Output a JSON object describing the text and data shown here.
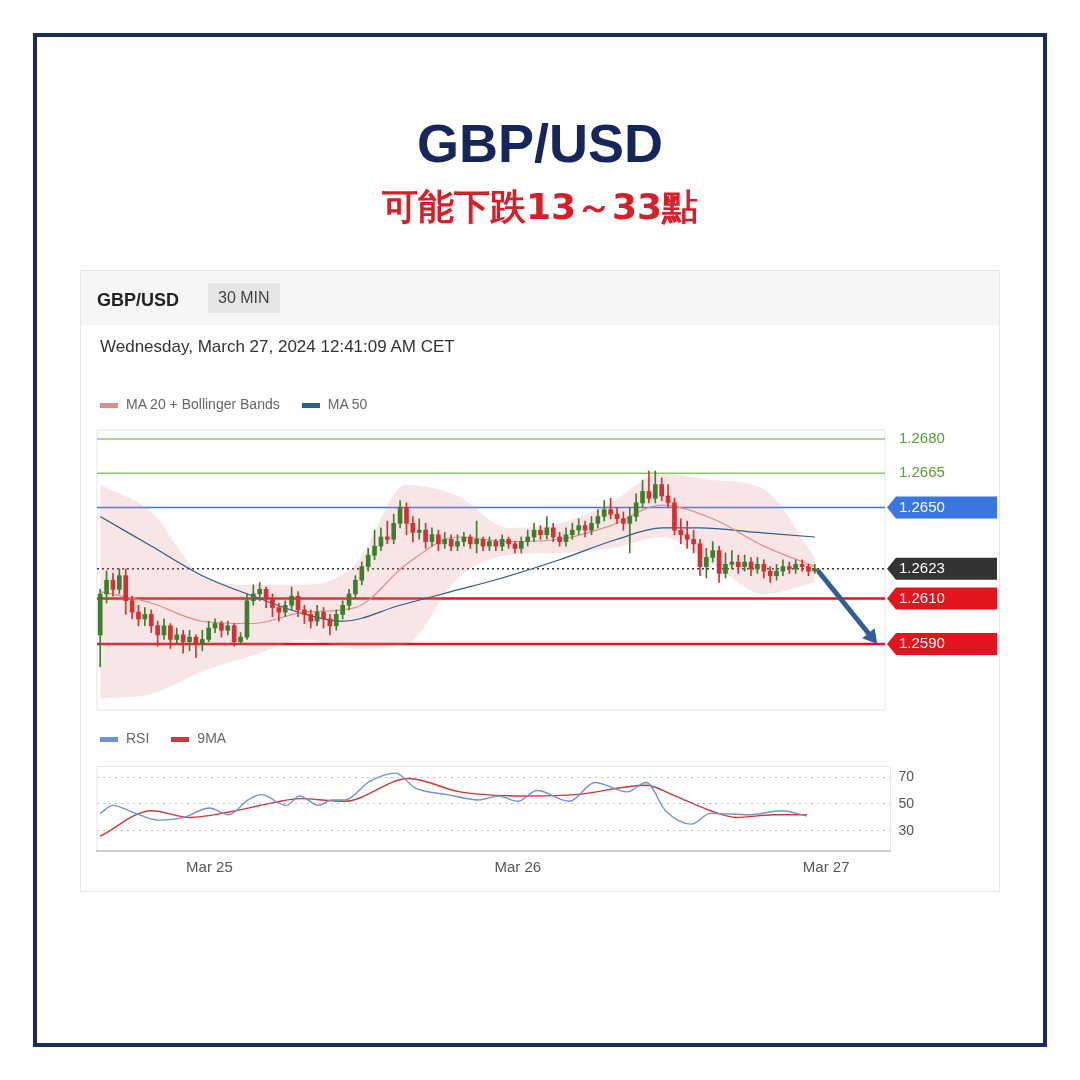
{
  "chart_data": [
    {
      "type": "candlestick",
      "title": "GBP/USD",
      "subtitle": "可能下跌13～33點",
      "annotations": [
        "GBP/USD",
        "30 MIN",
        "Wednesday, March 27, 2024 12:41:09 AM CET"
      ],
      "xlim": [
        "2024-03-24T15:15",
        "2024-03-27T05:00"
      ],
      "ylim": [
        1.2561,
        1.2684
      ],
      "tick_labels": false,
      "legend": "top left",
      "series": [
        {
          "x": [
            "2024-03-24T15:30",
            "2024-03-24T16:00",
            "2024-03-24T16:30",
            "2024-03-24T17:00",
            "2024-03-24T17:30",
            "2024-03-24T18:00",
            "2024-03-24T18:30",
            "2024-03-24T19:00",
            "2024-03-24T19:30",
            "2024-03-24T20:00",
            "2024-03-24T20:30",
            "2024-03-24T21:00",
            "2024-03-24T21:30",
            "2024-03-24T22:00",
            "2024-03-24T22:30",
            "2024-03-24T23:00",
            "2024-03-24T23:30",
            "2024-03-25T00:00",
            "2024-03-25T00:30",
            "2024-03-25T01:00",
            "2024-03-25T01:30",
            "2024-03-25T02:00",
            "2024-03-25T02:30",
            "2024-03-25T03:00",
            "2024-03-25T03:30",
            "2024-03-25T04:00",
            "2024-03-25T04:30",
            "2024-03-25T05:00",
            "2024-03-25T05:30",
            "2024-03-25T06:00",
            "2024-03-25T06:30",
            "2024-03-25T07:00",
            "2024-03-25T07:30",
            "2024-03-25T08:00",
            "2024-03-25T08:30",
            "2024-03-25T09:00",
            "2024-03-25T09:30",
            "2024-03-25T10:00",
            "2024-03-25T10:30",
            "2024-03-25T11:00",
            "2024-03-25T11:30",
            "2024-03-25T12:00",
            "2024-03-25T12:30",
            "2024-03-25T13:00",
            "2024-03-25T13:30",
            "2024-03-25T14:00",
            "2024-03-25T14:30",
            "2024-03-25T15:00",
            "2024-03-25T15:30",
            "2024-03-25T16:00",
            "2024-03-25T16:30",
            "2024-03-25T17:00",
            "2024-03-25T17:30",
            "2024-03-25T18:00",
            "2024-03-25T18:30",
            "2024-03-25T19:00",
            "2024-03-25T19:30",
            "2024-03-25T20:00",
            "2024-03-25T20:30",
            "2024-03-25T21:00",
            "2024-03-25T21:30",
            "2024-03-25T22:00",
            "2024-03-25T22:30",
            "2024-03-25T23:00",
            "2024-03-25T23:30",
            "2024-03-26T00:00",
            "2024-03-26T00:30",
            "2024-03-26T01:00",
            "2024-03-26T01:30",
            "2024-03-26T02:00",
            "2024-03-26T02:30",
            "2024-03-26T03:00",
            "2024-03-26T03:30",
            "2024-03-26T04:00",
            "2024-03-26T04:30",
            "2024-03-26T05:00",
            "2024-03-26T05:30",
            "2024-03-26T06:00",
            "2024-03-26T06:30",
            "2024-03-26T07:00",
            "2024-03-26T07:30",
            "2024-03-26T08:00",
            "2024-03-26T08:30",
            "2024-03-26T09:00",
            "2024-03-26T09:30",
            "2024-03-26T10:00",
            "2024-03-26T10:30",
            "2024-03-26T11:00",
            "2024-03-26T11:30",
            "2024-03-26T12:00",
            "2024-03-26T12:30",
            "2024-03-26T13:00",
            "2024-03-26T13:30",
            "2024-03-26T14:00",
            "2024-03-26T14:30",
            "2024-03-26T15:00",
            "2024-03-26T15:30",
            "2024-03-26T16:00",
            "2024-03-26T16:30",
            "2024-03-26T17:00",
            "2024-03-26T17:30",
            "2024-03-26T18:00",
            "2024-03-26T18:30",
            "2024-03-26T19:00",
            "2024-03-26T19:30",
            "2024-03-26T20:00",
            "2024-03-26T20:30",
            "2024-03-26T21:00",
            "2024-03-26T21:30",
            "2024-03-26T22:00",
            "2024-03-26T22:30",
            "2024-03-26T23:00",
            "2024-03-26T23:30"
          ],
          "ohlc": [
            [
              1.2594,
              1.2614,
              1.258,
              1.2612
            ],
            [
              1.2612,
              1.2622,
              1.2608,
              1.2618
            ],
            [
              1.2618,
              1.2621,
              1.2611,
              1.2614
            ],
            [
              1.2614,
              1.2623,
              1.2612,
              1.262
            ],
            [
              1.262,
              1.2623,
              1.2603,
              1.2609
            ],
            [
              1.2609,
              1.2611,
              1.2601,
              1.2604
            ],
            [
              1.2604,
              1.2607,
              1.2598,
              1.2601
            ],
            [
              1.2601,
              1.2606,
              1.2598,
              1.2603
            ],
            [
              1.2603,
              1.2605,
              1.2595,
              1.2598
            ],
            [
              1.2598,
              1.26,
              1.2589,
              1.2594
            ],
            [
              1.2594,
              1.2601,
              1.2592,
              1.2598
            ],
            [
              1.2598,
              1.2599,
              1.2588,
              1.2592
            ],
            [
              1.2592,
              1.2597,
              1.259,
              1.2594
            ],
            [
              1.2594,
              1.2596,
              1.2586,
              1.2591
            ],
            [
              1.2591,
              1.2596,
              1.2587,
              1.2593
            ],
            [
              1.2593,
              1.2594,
              1.2584,
              1.259
            ],
            [
              1.259,
              1.2596,
              1.2587,
              1.2592
            ],
            [
              1.2592,
              1.26,
              1.2591,
              1.2597
            ],
            [
              1.2597,
              1.2601,
              1.2595,
              1.2599
            ],
            [
              1.2599,
              1.26,
              1.2593,
              1.2596
            ],
            [
              1.2596,
              1.26,
              1.2594,
              1.2598
            ],
            [
              1.2598,
              1.2599,
              1.2589,
              1.2591
            ],
            [
              1.2591,
              1.2595,
              1.259,
              1.2593
            ],
            [
              1.2593,
              1.2612,
              1.2592,
              1.2609
            ],
            [
              1.2609,
              1.2616,
              1.2607,
              1.2612
            ],
            [
              1.2612,
              1.2617,
              1.2609,
              1.2614
            ],
            [
              1.2614,
              1.2615,
              1.2606,
              1.261
            ],
            [
              1.261,
              1.2612,
              1.2602,
              1.2606
            ],
            [
              1.2606,
              1.2608,
              1.26,
              1.2604
            ],
            [
              1.2604,
              1.2609,
              1.2602,
              1.2607
            ],
            [
              1.2607,
              1.2615,
              1.2605,
              1.2611
            ],
            [
              1.2611,
              1.2613,
              1.2602,
              1.2605
            ],
            [
              1.2605,
              1.2607,
              1.2599,
              1.2603
            ],
            [
              1.2603,
              1.2605,
              1.2597,
              1.26
            ],
            [
              1.26,
              1.2607,
              1.2598,
              1.2604
            ],
            [
              1.2604,
              1.2606,
              1.2597,
              1.2601
            ],
            [
              1.2601,
              1.2603,
              1.2594,
              1.2598
            ],
            [
              1.2598,
              1.2605,
              1.2596,
              1.2603
            ],
            [
              1.2603,
              1.2609,
              1.2601,
              1.2607
            ],
            [
              1.2607,
              1.2614,
              1.2605,
              1.2612
            ],
            [
              1.2612,
              1.262,
              1.261,
              1.2618
            ],
            [
              1.2618,
              1.2626,
              1.2616,
              1.2624
            ],
            [
              1.2624,
              1.2632,
              1.2622,
              1.2629
            ],
            [
              1.2629,
              1.264,
              1.2627,
              1.2633
            ],
            [
              1.2633,
              1.2641,
              1.2631,
              1.2637
            ],
            [
              1.2637,
              1.2644,
              1.2634,
              1.2636
            ],
            [
              1.2636,
              1.2647,
              1.2634,
              1.2643
            ],
            [
              1.2643,
              1.2653,
              1.2641,
              1.265
            ],
            [
              1.265,
              1.2652,
              1.2638,
              1.2643
            ],
            [
              1.2643,
              1.2646,
              1.2635,
              1.2639
            ],
            [
              1.2639,
              1.2645,
              1.2636,
              1.264
            ],
            [
              1.264,
              1.2643,
              1.2632,
              1.2635
            ],
            [
              1.2635,
              1.2641,
              1.2633,
              1.2638
            ],
            [
              1.2638,
              1.264,
              1.2631,
              1.2634
            ],
            [
              1.2634,
              1.2639,
              1.2632,
              1.2636
            ],
            [
              1.2636,
              1.2638,
              1.2631,
              1.2633
            ],
            [
              1.2633,
              1.2638,
              1.2631,
              1.2635
            ],
            [
              1.2635,
              1.2639,
              1.2633,
              1.2637
            ],
            [
              1.2637,
              1.2638,
              1.2632,
              1.2634
            ],
            [
              1.2634,
              1.2644,
              1.263,
              1.2636
            ],
            [
              1.2636,
              1.2637,
              1.2631,
              1.2633
            ],
            [
              1.2633,
              1.2637,
              1.2631,
              1.2635
            ],
            [
              1.2635,
              1.2636,
              1.2631,
              1.2633
            ],
            [
              1.2633,
              1.2638,
              1.2631,
              1.2636
            ],
            [
              1.2636,
              1.2637,
              1.2632,
              1.2634
            ],
            [
              1.2634,
              1.2635,
              1.263,
              1.2632
            ],
            [
              1.2632,
              1.2637,
              1.263,
              1.2635
            ],
            [
              1.2635,
              1.264,
              1.2633,
              1.2637
            ],
            [
              1.2637,
              1.2643,
              1.2635,
              1.264
            ],
            [
              1.264,
              1.2642,
              1.2636,
              1.2638
            ],
            [
              1.2638,
              1.2646,
              1.2636,
              1.2641
            ],
            [
              1.2641,
              1.2643,
              1.2635,
              1.2637
            ],
            [
              1.2637,
              1.2639,
              1.2633,
              1.2635
            ],
            [
              1.2635,
              1.2641,
              1.2633,
              1.2638
            ],
            [
              1.2638,
              1.2643,
              1.2636,
              1.264
            ],
            [
              1.264,
              1.2645,
              1.2638,
              1.2642
            ],
            [
              1.2642,
              1.2644,
              1.2637,
              1.264
            ],
            [
              1.264,
              1.2646,
              1.2638,
              1.2643
            ],
            [
              1.2643,
              1.2649,
              1.2641,
              1.2646
            ],
            [
              1.2646,
              1.2653,
              1.2644,
              1.2649
            ],
            [
              1.2649,
              1.2654,
              1.2645,
              1.2647
            ],
            [
              1.2647,
              1.265,
              1.2643,
              1.2645
            ],
            [
              1.2645,
              1.2648,
              1.264,
              1.2643
            ],
            [
              1.2643,
              1.265,
              1.263,
              1.2646
            ],
            [
              1.2646,
              1.2656,
              1.2644,
              1.2652
            ],
            [
              1.2652,
              1.2662,
              1.265,
              1.2657
            ],
            [
              1.2657,
              1.2666,
              1.2652,
              1.2654
            ],
            [
              1.2654,
              1.2666,
              1.2652,
              1.266
            ],
            [
              1.266,
              1.2663,
              1.2653,
              1.2655
            ],
            [
              1.2655,
              1.266,
              1.265,
              1.2652
            ],
            [
              1.2652,
              1.2654,
              1.2638,
              1.264
            ],
            [
              1.264,
              1.2645,
              1.2634,
              1.2638
            ],
            [
              1.2638,
              1.2644,
              1.2632,
              1.2636
            ],
            [
              1.2636,
              1.264,
              1.263,
              1.2634
            ],
            [
              1.2634,
              1.2636,
              1.262,
              1.2624
            ],
            [
              1.2624,
              1.2632,
              1.2619,
              1.2628
            ],
            [
              1.2628,
              1.2635,
              1.2626,
              1.2631
            ],
            [
              1.2631,
              1.2633,
              1.2617,
              1.2621
            ],
            [
              1.2621,
              1.263,
              1.2619,
              1.2625
            ],
            [
              1.2625,
              1.2631,
              1.2623,
              1.2626
            ],
            [
              1.2626,
              1.2629,
              1.2621,
              1.2624
            ],
            [
              1.2624,
              1.2629,
              1.2622,
              1.2626
            ],
            [
              1.2626,
              1.2628,
              1.262,
              1.2623
            ],
            [
              1.2623,
              1.2628,
              1.2621,
              1.2625
            ],
            [
              1.2625,
              1.2627,
              1.2619,
              1.2622
            ],
            [
              1.2622,
              1.2624,
              1.2617,
              1.262
            ],
            [
              1.262,
              1.2625,
              1.2618,
              1.2622
            ],
            [
              1.2622,
              1.2627,
              1.262,
              1.2624
            ],
            [
              1.2624,
              1.2626,
              1.2621,
              1.2623
            ],
            [
              1.2623,
              1.2627,
              1.2621,
              1.2625
            ],
            [
              1.2625,
              1.2627,
              1.2622,
              1.2624
            ],
            [
              1.2624,
              1.2625,
              1.262,
              1.2622
            ],
            [
              1.2622,
              1.2625,
              1.2621,
              1.2623
            ]
          ]
        },
        {
          "type": "line",
          "name": "MA 20 + Bollinger Bands",
          "color": "#e08c8c",
          "x": [
            "2024-03-24T15:30",
            "2024-03-24T19:30",
            "2024-03-24T23:30",
            "2024-03-25T03:30",
            "2024-03-25T07:30",
            "2024-03-25T11:30",
            "2024-03-25T15:30",
            "2024-03-25T19:30",
            "2024-03-25T23:30",
            "2024-03-26T03:30",
            "2024-03-26T07:30",
            "2024-03-26T11:30",
            "2024-03-26T15:30",
            "2024-03-26T19:30",
            "2024-03-26T23:30"
          ],
          "values": [
            1.2613,
            1.2608,
            1.26,
            1.2599,
            1.2604,
            1.2606,
            1.2625,
            1.2637,
            1.2635,
            1.2636,
            1.2642,
            1.2651,
            1.2645,
            1.2633,
            1.2624
          ],
          "lower": [
            1.2566,
            1.2568,
            1.2578,
            1.2585,
            1.2592,
            1.2588,
            1.259,
            1.2619,
            1.2629,
            1.263,
            1.2632,
            1.2637,
            1.2625,
            1.2612,
            1.2617
          ],
          "upper": [
            1.266,
            1.2648,
            1.262,
            1.2616,
            1.2616,
            1.2625,
            1.266,
            1.2655,
            1.2641,
            1.2643,
            1.2652,
            1.2665,
            1.2662,
            1.2658,
            1.2628
          ]
        },
        {
          "type": "line",
          "name": "MA 50",
          "color": "#2d5b8a",
          "x": [
            "2024-03-24T15:30",
            "2024-03-24T19:30",
            "2024-03-24T23:30",
            "2024-03-25T03:30",
            "2024-03-25T07:00",
            "2024-03-25T10:30",
            "2024-03-25T15:00",
            "2024-03-25T19:00",
            "2024-03-25T23:00",
            "2024-03-26T03:30",
            "2024-03-26T08:00",
            "2024-03-26T11:30",
            "2024-03-26T14:30",
            "2024-03-26T19:00",
            "2024-03-26T23:30"
          ],
          "values": [
            1.2646,
            1.2633,
            1.262,
            1.2611,
            1.2604,
            1.26,
            1.2607,
            1.2613,
            1.2619,
            1.2627,
            1.2636,
            1.2641,
            1.2641,
            1.2639,
            1.2637
          ]
        }
      ],
      "ref_lines": [
        {
          "axis": "y",
          "value": 1.268,
          "label": "1.2680",
          "color": "#8cc96a"
        },
        {
          "axis": "y",
          "value": 1.2665,
          "label": "1.2665",
          "color": "#8cc96a"
        },
        {
          "axis": "y",
          "value": 1.265,
          "label": "1.2650",
          "color": "#3a76e0"
        },
        {
          "axis": "y",
          "value": 1.2623,
          "label": "1.2623",
          "color": "#333333",
          "line_style": "dotted"
        },
        {
          "axis": "y",
          "value": 1.261,
          "label": "1.2610",
          "color": "#e3141e"
        },
        {
          "axis": "y",
          "value": 1.259,
          "label": "1.2590",
          "color": "#e3141e"
        }
      ]
    },
    {
      "type": "line",
      "xlim": [
        "2024-03-24T15:15",
        "2024-03-27T05:00"
      ],
      "xticks": [
        {
          "value": "2024-03-25",
          "label": "Mar 25"
        },
        {
          "value": "2024-03-26",
          "label": "Mar 26"
        },
        {
          "value": "2024-03-27",
          "label": "Mar 27"
        }
      ],
      "ylim": [
        15,
        78
      ],
      "yticks": [
        30,
        50,
        70
      ],
      "grid": "y",
      "legend": "top left",
      "series": [
        {
          "name": "RSI",
          "color": "#6f94d6",
          "x": [
            "2024-03-24T15:30",
            "2024-03-24T16:30",
            "2024-03-24T18:00",
            "2024-03-24T20:00",
            "2024-03-24T22:00",
            "2024-03-25T00:00",
            "2024-03-25T01:30",
            "2024-03-25T03:00",
            "2024-03-25T04:00",
            "2024-03-25T06:00",
            "2024-03-25T07:00",
            "2024-03-25T08:30",
            "2024-03-25T09:30",
            "2024-03-25T10:30",
            "2024-03-25T12:30",
            "2024-03-25T14:30",
            "2024-03-25T16:00",
            "2024-03-25T18:30",
            "2024-03-25T21:00",
            "2024-03-25T22:30",
            "2024-03-26T00:00",
            "2024-03-26T01:30",
            "2024-03-26T04:00",
            "2024-03-26T06:00",
            "2024-03-26T08:30",
            "2024-03-26T10:00",
            "2024-03-26T11:30",
            "2024-03-26T13:30",
            "2024-03-26T15:00",
            "2024-03-26T18:00",
            "2024-03-26T20:30",
            "2024-03-26T22:30"
          ],
          "values": [
            43,
            49,
            44,
            38,
            40,
            47,
            42,
            53,
            57,
            49,
            56,
            49,
            53,
            53,
            67,
            73,
            62,
            57,
            53,
            56,
            52,
            60,
            52,
            66,
            59,
            66,
            45,
            35,
            43,
            42,
            45,
            41
          ]
        },
        {
          "name": "9MA",
          "color": "#d0383a",
          "x": [
            "2024-03-24T15:30",
            "2024-03-24T19:30",
            "2024-03-24T22:30",
            "2024-03-25T01:30",
            "2024-03-25T05:00",
            "2024-03-25T07:00",
            "2024-03-25T10:30",
            "2024-03-25T15:30",
            "2024-03-25T19:30",
            "2024-03-26T00:30",
            "2024-03-26T04:30",
            "2024-03-26T10:00",
            "2024-03-26T12:00",
            "2024-03-26T15:00",
            "2024-03-26T17:00",
            "2024-03-26T20:00",
            "2024-03-26T22:30"
          ],
          "values": [
            26,
            45,
            40,
            44,
            51,
            54,
            52,
            69,
            59,
            56,
            57,
            64,
            57,
            45,
            40,
            42,
            42
          ]
        }
      ]
    }
  ]
}
